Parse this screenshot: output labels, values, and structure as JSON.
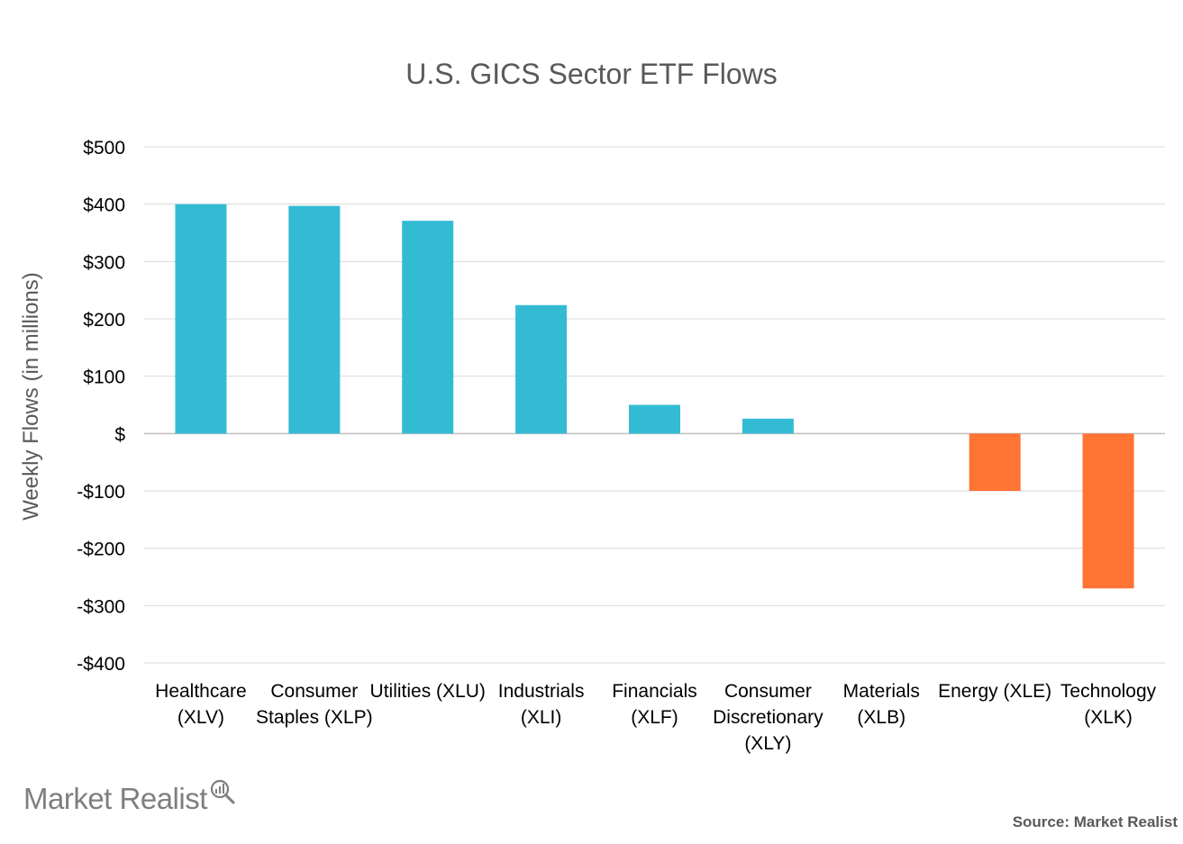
{
  "chart_data": {
    "type": "bar",
    "title": "U.S. GICS Sector ETF Flows",
    "ylabel": "Weekly Flows (in millions)",
    "xlabel": "",
    "ylim": [
      -400,
      500
    ],
    "yticks": [
      500,
      400,
      300,
      200,
      100,
      0,
      -100,
      -200,
      -300,
      -400
    ],
    "ytick_labels": [
      "$500",
      "$400",
      "$300",
      "$200",
      "$100",
      "$",
      "-$100",
      "-$200",
      "-$300",
      "-$400"
    ],
    "grid": true,
    "categories": [
      [
        "Healthcare",
        "(XLV)"
      ],
      [
        "Consumer",
        "Staples (XLP)"
      ],
      [
        "Utilities (XLU)"
      ],
      [
        "Industrials",
        "(XLI)"
      ],
      [
        "Financials",
        "(XLF)"
      ],
      [
        "Consumer",
        "Discretionary",
        "(XLY)"
      ],
      [
        "Materials",
        "(XLB)"
      ],
      [
        "Energy (XLE)"
      ],
      [
        "Technology",
        "(XLK)"
      ]
    ],
    "values": [
      400,
      397,
      371,
      224,
      50,
      26,
      0,
      -100,
      -270
    ],
    "colors": {
      "positive": "#33bbd4",
      "negative": "#ff7333",
      "grid": "#d9d9d9",
      "zero_line": "#bfbfbf"
    }
  },
  "source": "Source: Market Realist",
  "logo": {
    "text": "Market Realist",
    "icon": "magnifier-bar-chart-icon"
  }
}
